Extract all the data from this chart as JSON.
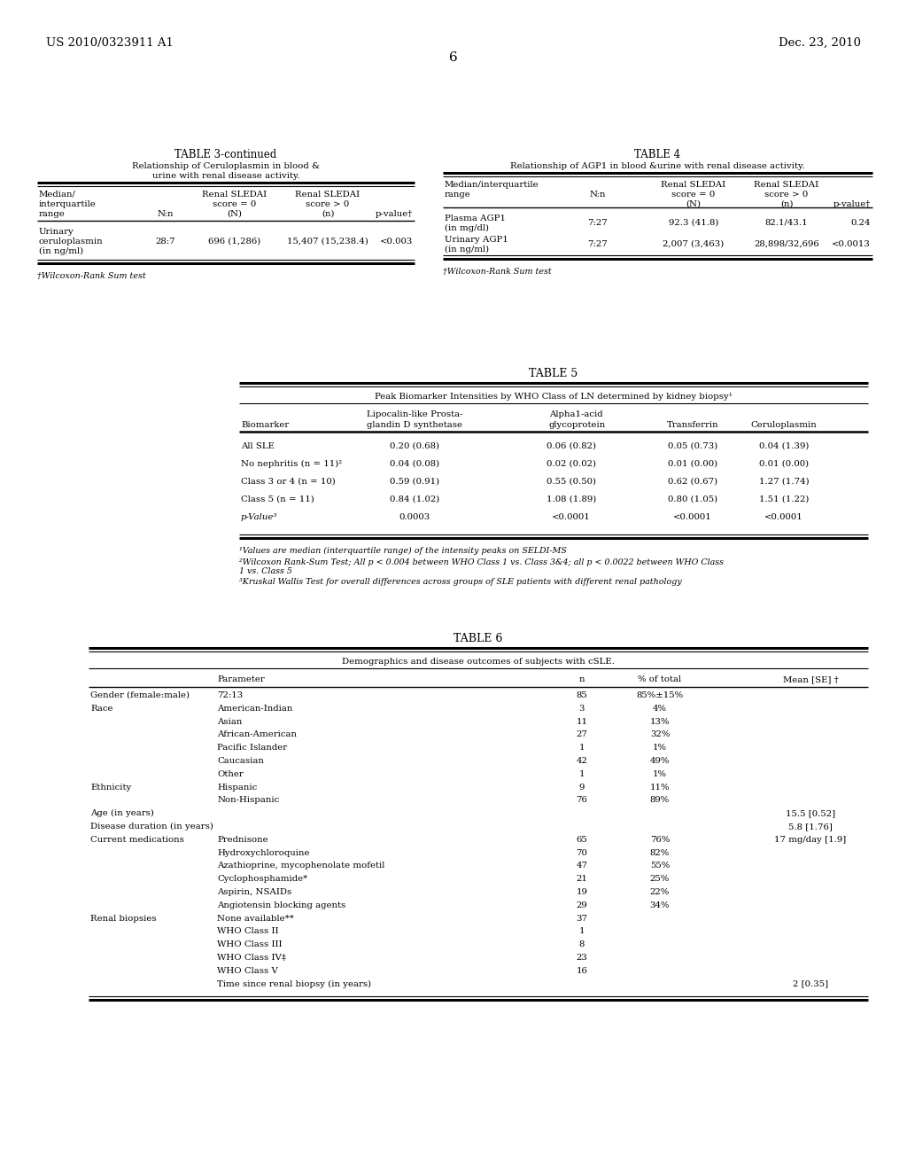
{
  "header_left": "US 2010/0323911 A1",
  "header_right": "Dec. 23, 2010",
  "page_number": "6",
  "bg_color": "#ffffff",
  "text_color": "#000000",
  "table3_title": "TABLE 3-continued",
  "table4_title": "TABLE 4",
  "table5_title": "TABLE 5",
  "table6_title": "TABLE 6"
}
